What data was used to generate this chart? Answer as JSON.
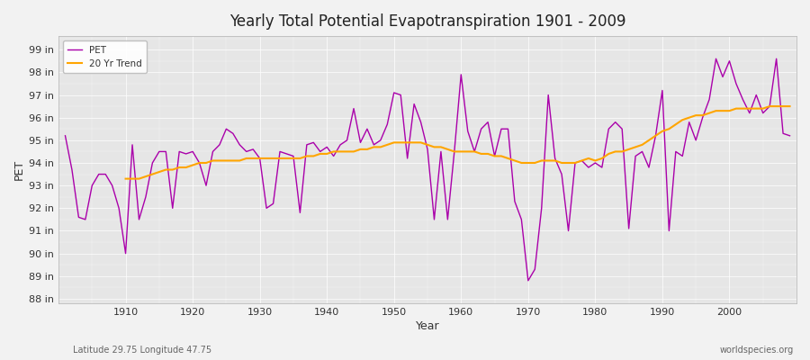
{
  "title": "Yearly Total Potential Evapotranspiration 1901 - 2009",
  "xlabel": "Year",
  "ylabel": "PET",
  "subtitle_left": "Latitude 29.75 Longitude 47.75",
  "subtitle_right": "worldspecies.org",
  "pet_color": "#AA00AA",
  "trend_color": "#FFA500",
  "bg_color": "#F0F0F0",
  "plot_bg": "#E8E8E8",
  "ylim": [
    87.8,
    99.6
  ],
  "yticks": [
    88,
    89,
    90,
    91,
    92,
    93,
    94,
    95,
    96,
    97,
    98,
    99
  ],
  "ytick_labels": [
    "88 in",
    "89 in",
    "90 in",
    "91 in",
    "92 in",
    "93 in",
    "94 in",
    "95 in",
    "96 in",
    "97 in",
    "98 in",
    "99 in"
  ],
  "xlim": [
    1900,
    2010
  ],
  "xticks": [
    1910,
    1920,
    1930,
    1940,
    1950,
    1960,
    1970,
    1980,
    1990,
    2000
  ],
  "years": [
    1901,
    1902,
    1903,
    1904,
    1905,
    1906,
    1907,
    1908,
    1909,
    1910,
    1911,
    1912,
    1913,
    1914,
    1915,
    1916,
    1917,
    1918,
    1919,
    1920,
    1921,
    1922,
    1923,
    1924,
    1925,
    1926,
    1927,
    1928,
    1929,
    1930,
    1931,
    1932,
    1933,
    1934,
    1935,
    1936,
    1937,
    1938,
    1939,
    1940,
    1941,
    1942,
    1943,
    1944,
    1945,
    1946,
    1947,
    1948,
    1949,
    1950,
    1951,
    1952,
    1953,
    1954,
    1955,
    1956,
    1957,
    1958,
    1959,
    1960,
    1961,
    1962,
    1963,
    1964,
    1965,
    1966,
    1967,
    1968,
    1969,
    1970,
    1971,
    1972,
    1973,
    1974,
    1975,
    1976,
    1977,
    1978,
    1979,
    1980,
    1981,
    1982,
    1983,
    1984,
    1985,
    1986,
    1987,
    1988,
    1989,
    1990,
    1991,
    1992,
    1993,
    1994,
    1995,
    1996,
    1997,
    1998,
    1999,
    2000,
    2001,
    2002,
    2003,
    2004,
    2005,
    2006,
    2007,
    2008,
    2009
  ],
  "pet": [
    95.2,
    93.7,
    91.6,
    91.5,
    93.0,
    93.5,
    93.5,
    93.0,
    92.0,
    90.0,
    94.8,
    91.5,
    92.5,
    94.0,
    94.5,
    94.5,
    92.0,
    94.5,
    94.4,
    94.5,
    94.0,
    93.0,
    94.5,
    94.8,
    95.5,
    95.3,
    94.8,
    94.5,
    94.6,
    94.2,
    92.0,
    92.2,
    94.5,
    94.4,
    94.3,
    91.8,
    94.8,
    94.9,
    94.5,
    94.7,
    94.3,
    94.8,
    95.0,
    96.4,
    94.9,
    95.5,
    94.8,
    95.0,
    95.7,
    97.1,
    97.0,
    94.2,
    96.6,
    95.8,
    94.6,
    91.5,
    94.5,
    91.5,
    94.5,
    97.9,
    95.4,
    94.5,
    95.5,
    95.8,
    94.3,
    95.5,
    95.5,
    92.3,
    91.5,
    88.8,
    89.3,
    92.0,
    97.0,
    94.2,
    93.5,
    91.0,
    94.0,
    94.1,
    93.8,
    94.0,
    93.8,
    95.5,
    95.8,
    95.5,
    91.1,
    94.3,
    94.5,
    93.8,
    95.2,
    97.2,
    91.0,
    94.5,
    94.3,
    95.8,
    95.0,
    96.0,
    96.8,
    98.6,
    97.8,
    98.5,
    97.5,
    96.8,
    96.2,
    97.0,
    96.2,
    96.5,
    98.6,
    95.3,
    95.2
  ],
  "trend_years": [
    1910,
    1911,
    1912,
    1913,
    1914,
    1915,
    1916,
    1917,
    1918,
    1919,
    1920,
    1921,
    1922,
    1923,
    1924,
    1925,
    1926,
    1927,
    1928,
    1929,
    1930,
    1931,
    1932,
    1933,
    1934,
    1935,
    1936,
    1937,
    1938,
    1939,
    1940,
    1941,
    1942,
    1943,
    1944,
    1945,
    1946,
    1947,
    1948,
    1949,
    1950,
    1951,
    1952,
    1953,
    1954,
    1955,
    1956,
    1957,
    1958,
    1959,
    1960,
    1961,
    1962,
    1963,
    1964,
    1965,
    1966,
    1967,
    1968,
    1969,
    1970,
    1971,
    1972,
    1973,
    1974,
    1975,
    1976,
    1977,
    1978,
    1979,
    1980,
    1981,
    1982,
    1983,
    1984,
    1985,
    1986,
    1987,
    1988,
    1989,
    1990,
    1991,
    1992,
    1993,
    1994,
    1995,
    1996,
    1997,
    1998,
    1999,
    2000,
    2001,
    2002,
    2003,
    2004,
    2005,
    2006,
    2007,
    2008,
    2009
  ],
  "trend": [
    93.3,
    93.3,
    93.3,
    93.4,
    93.5,
    93.6,
    93.7,
    93.7,
    93.8,
    93.8,
    93.9,
    94.0,
    94.0,
    94.1,
    94.1,
    94.1,
    94.1,
    94.1,
    94.2,
    94.2,
    94.2,
    94.2,
    94.2,
    94.2,
    94.2,
    94.2,
    94.2,
    94.3,
    94.3,
    94.4,
    94.4,
    94.5,
    94.5,
    94.5,
    94.5,
    94.6,
    94.6,
    94.7,
    94.7,
    94.8,
    94.9,
    94.9,
    94.9,
    94.9,
    94.9,
    94.8,
    94.7,
    94.7,
    94.6,
    94.5,
    94.5,
    94.5,
    94.5,
    94.4,
    94.4,
    94.3,
    94.3,
    94.2,
    94.1,
    94.0,
    94.0,
    94.0,
    94.1,
    94.1,
    94.1,
    94.0,
    94.0,
    94.0,
    94.1,
    94.2,
    94.1,
    94.2,
    94.4,
    94.5,
    94.5,
    94.6,
    94.7,
    94.8,
    95.0,
    95.2,
    95.4,
    95.5,
    95.7,
    95.9,
    96.0,
    96.1,
    96.1,
    96.2,
    96.3,
    96.3,
    96.3,
    96.4,
    96.4,
    96.4,
    96.4,
    96.4,
    96.5,
    96.5,
    96.5,
    96.5
  ]
}
